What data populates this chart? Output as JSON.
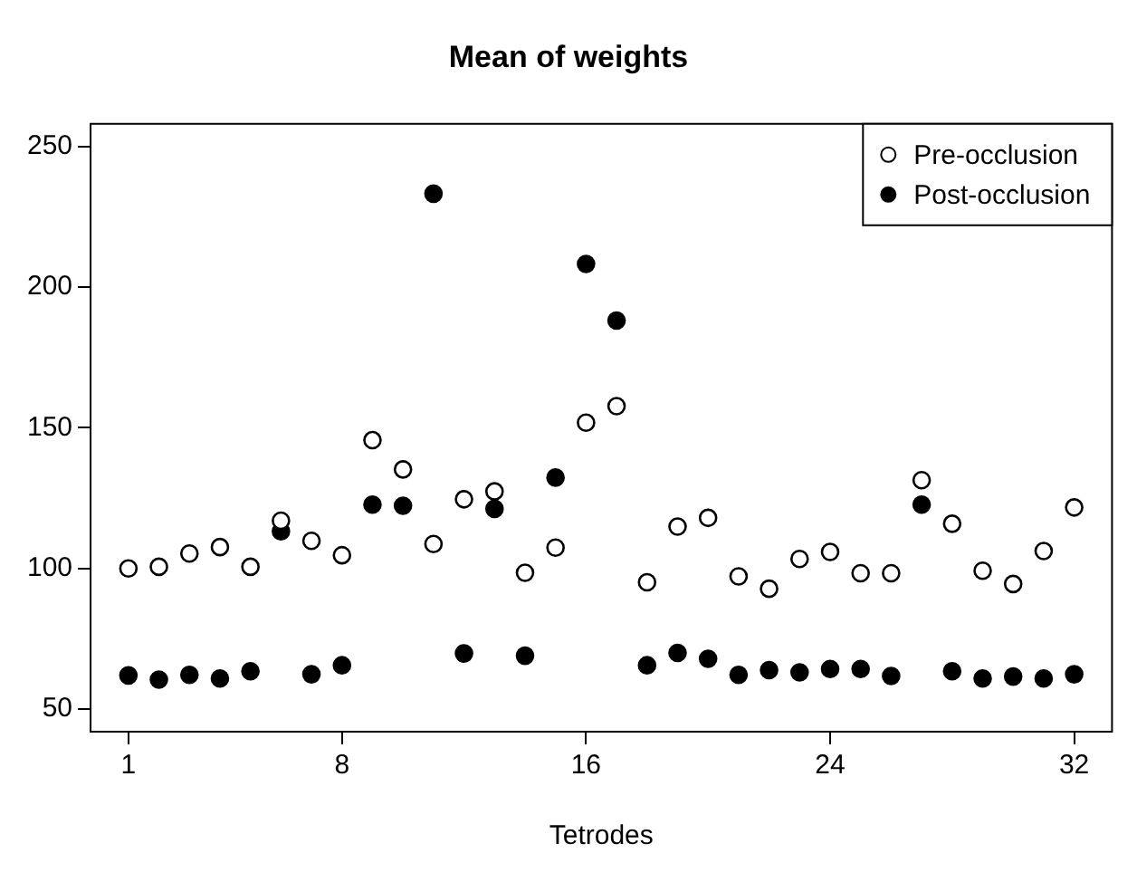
{
  "chart_data": {
    "type": "scatter",
    "title": "Mean of weights",
    "xlabel": "Tetrodes",
    "x": [
      1,
      2,
      3,
      4,
      5,
      6,
      7,
      8,
      9,
      10,
      11,
      12,
      13,
      14,
      15,
      16,
      17,
      18,
      19,
      20,
      21,
      22,
      23,
      24,
      25,
      26,
      27,
      28,
      29,
      30,
      31,
      32
    ],
    "series": [
      {
        "name": "Pre-occlusion",
        "color": "#000000",
        "values": [
          100,
          100.6,
          105.3,
          107.6,
          100.6,
          117,
          109.8,
          104.7,
          145.6,
          135.2,
          108.7,
          124.6,
          127.4,
          98.5,
          107.4,
          151.8,
          157.7,
          95.1,
          114.9,
          118,
          97.2,
          92.8,
          103.4,
          105.9,
          98.3,
          98.3,
          131.4,
          115.9,
          99.2,
          94.5,
          106.2,
          121.7
        ]
      },
      {
        "name": "Post-occlusion",
        "color": "#000000",
        "values": [
          62,
          60.5,
          62.2,
          60.9,
          63.5,
          113.2,
          62.4,
          65.6,
          122.7,
          122.3,
          233.2,
          69.8,
          121.2,
          69,
          132.3,
          208.2,
          188.1,
          65.6,
          70,
          67.9,
          62.2,
          63.9,
          63.1,
          64.3,
          64.3,
          61.8,
          122.7,
          63.5,
          60.9,
          61.6,
          60.9,
          62.4
        ]
      }
    ],
    "xlim": [
      -0.24,
      33.24
    ],
    "xticks": [
      1,
      8,
      16,
      24,
      32
    ],
    "ylim": [
      42,
      258
    ],
    "yticks": [
      50,
      100,
      150,
      200,
      250
    ],
    "grid": false,
    "legend": "top right",
    "marker": "circle"
  }
}
